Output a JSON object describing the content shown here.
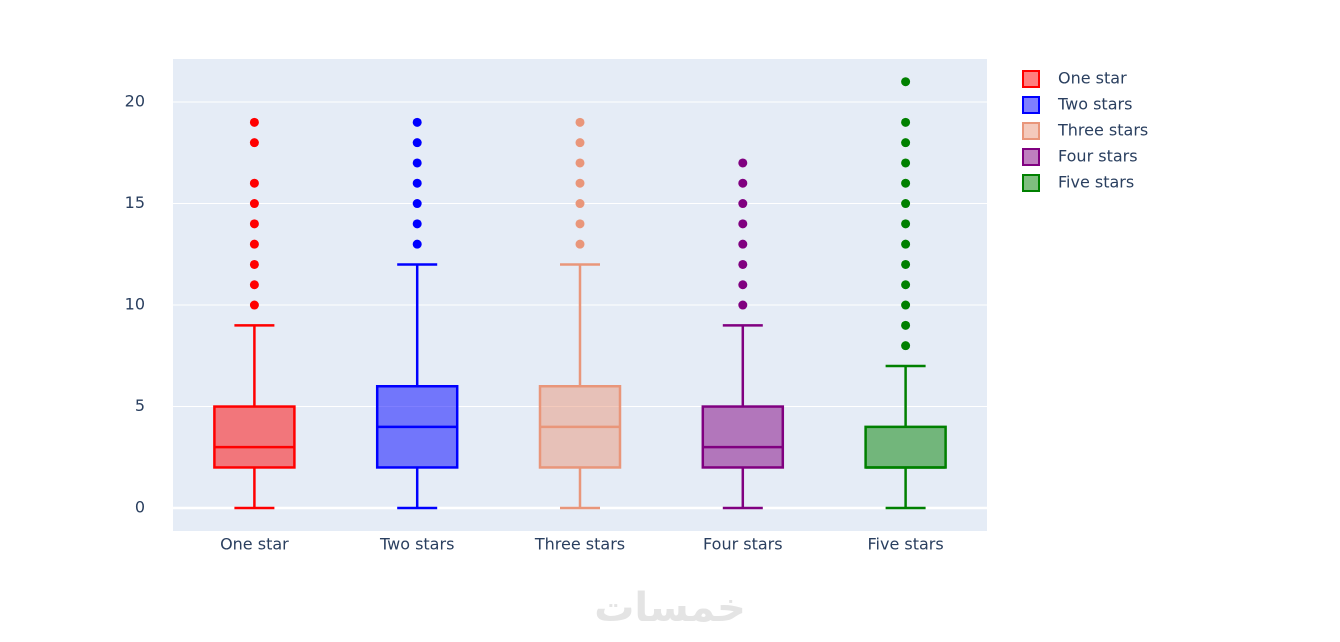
{
  "chart_data": {
    "type": "box",
    "categories": [
      "One star",
      "Two stars",
      "Three stars",
      "Four stars",
      "Five stars"
    ],
    "series": [
      {
        "name": "One star",
        "color": "#ff0000",
        "min": 0,
        "q1": 2,
        "median": 3,
        "q3": 5,
        "max": 9,
        "outliers": [
          10,
          11,
          12,
          13,
          14,
          15,
          16,
          18,
          19
        ]
      },
      {
        "name": "Two stars",
        "color": "#0000ff",
        "min": 0,
        "q1": 2,
        "median": 4,
        "q3": 6,
        "max": 12,
        "outliers": [
          13,
          14,
          15,
          16,
          17,
          18,
          19
        ]
      },
      {
        "name": "Three stars",
        "color": "#e9967a",
        "min": 0,
        "q1": 2,
        "median": 4,
        "q3": 6,
        "max": 12,
        "outliers": [
          13,
          14,
          15,
          16,
          17,
          18,
          19
        ]
      },
      {
        "name": "Four stars",
        "color": "#800080",
        "min": 0,
        "q1": 2,
        "median": 3,
        "q3": 5,
        "max": 9,
        "outliers": [
          10,
          11,
          12,
          13,
          14,
          15,
          16,
          17
        ]
      },
      {
        "name": "Five stars",
        "color": "#008000",
        "min": 0,
        "q1": 2,
        "median": 2,
        "q3": 4,
        "max": 7,
        "outliers": [
          8,
          9,
          10,
          11,
          12,
          13,
          14,
          15,
          16,
          17,
          18,
          19,
          21
        ]
      }
    ],
    "ylim": [
      -1.13,
      22.12
    ],
    "yticks": [
      0,
      5,
      10,
      15,
      20
    ],
    "grid": true,
    "legend": "right",
    "watermark": "خمسات"
  }
}
